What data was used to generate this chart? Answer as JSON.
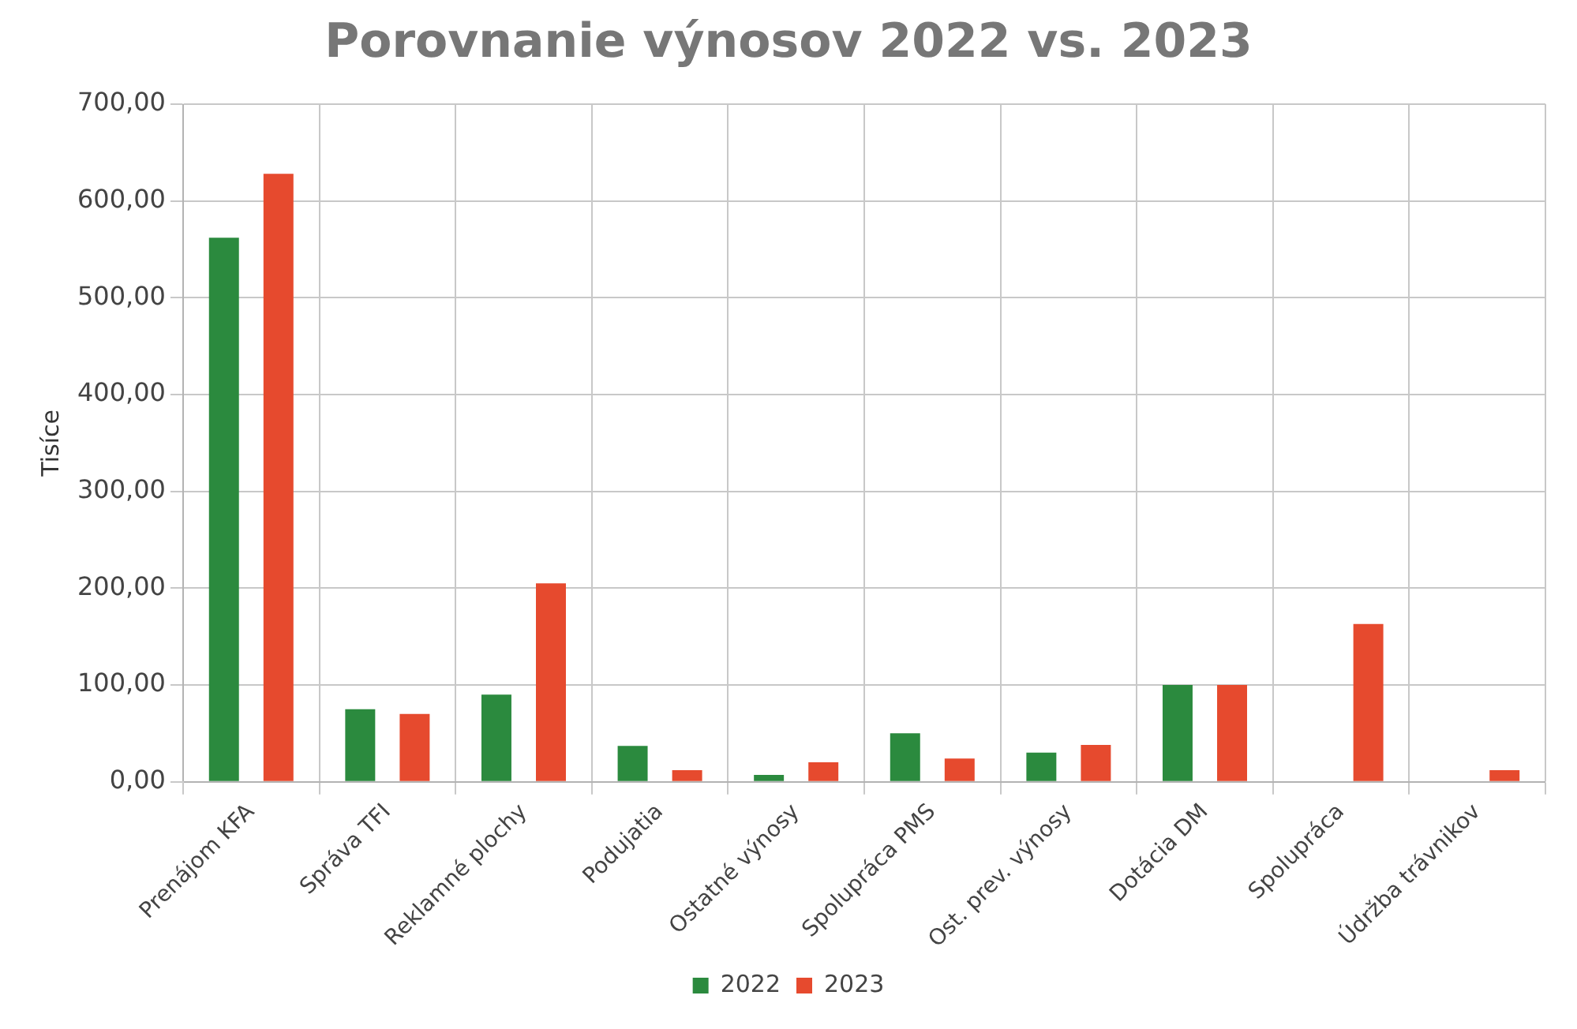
{
  "chart_data": {
    "type": "bar",
    "title": "Porovnanie výnosov 2022 vs. 2023",
    "ylabel": "Tisíce",
    "categories": [
      "Prenájom KFA",
      "Správa TFI",
      "Reklamné plochy",
      "Podujatia",
      "Ostatné výnosy",
      "Spolupráca PMS",
      "Ost. prev. výnosy",
      "Dotácia DM",
      "Spolupráca",
      "Údržba trávnikov"
    ],
    "series": [
      {
        "name": "2022",
        "color": "#2b8a3e",
        "values": [
          562,
          75,
          90,
          37,
          7,
          50,
          30,
          100,
          0,
          0
        ]
      },
      {
        "name": "2023",
        "color": "#e64a2e",
        "values": [
          628,
          70,
          205,
          12,
          20,
          24,
          38,
          100,
          163,
          12
        ]
      }
    ],
    "ylim": [
      0,
      700
    ],
    "yticks": [
      {
        "value": 0,
        "label": "0,00"
      },
      {
        "value": 100,
        "label": "100,00"
      },
      {
        "value": 200,
        "label": "200,00"
      },
      {
        "value": 300,
        "label": "300,00"
      },
      {
        "value": 400,
        "label": "400,00"
      },
      {
        "value": 500,
        "label": "500,00"
      },
      {
        "value": 600,
        "label": "600,00"
      },
      {
        "value": 700,
        "label": "700,00"
      }
    ],
    "grid": true,
    "legend": "bottom"
  }
}
